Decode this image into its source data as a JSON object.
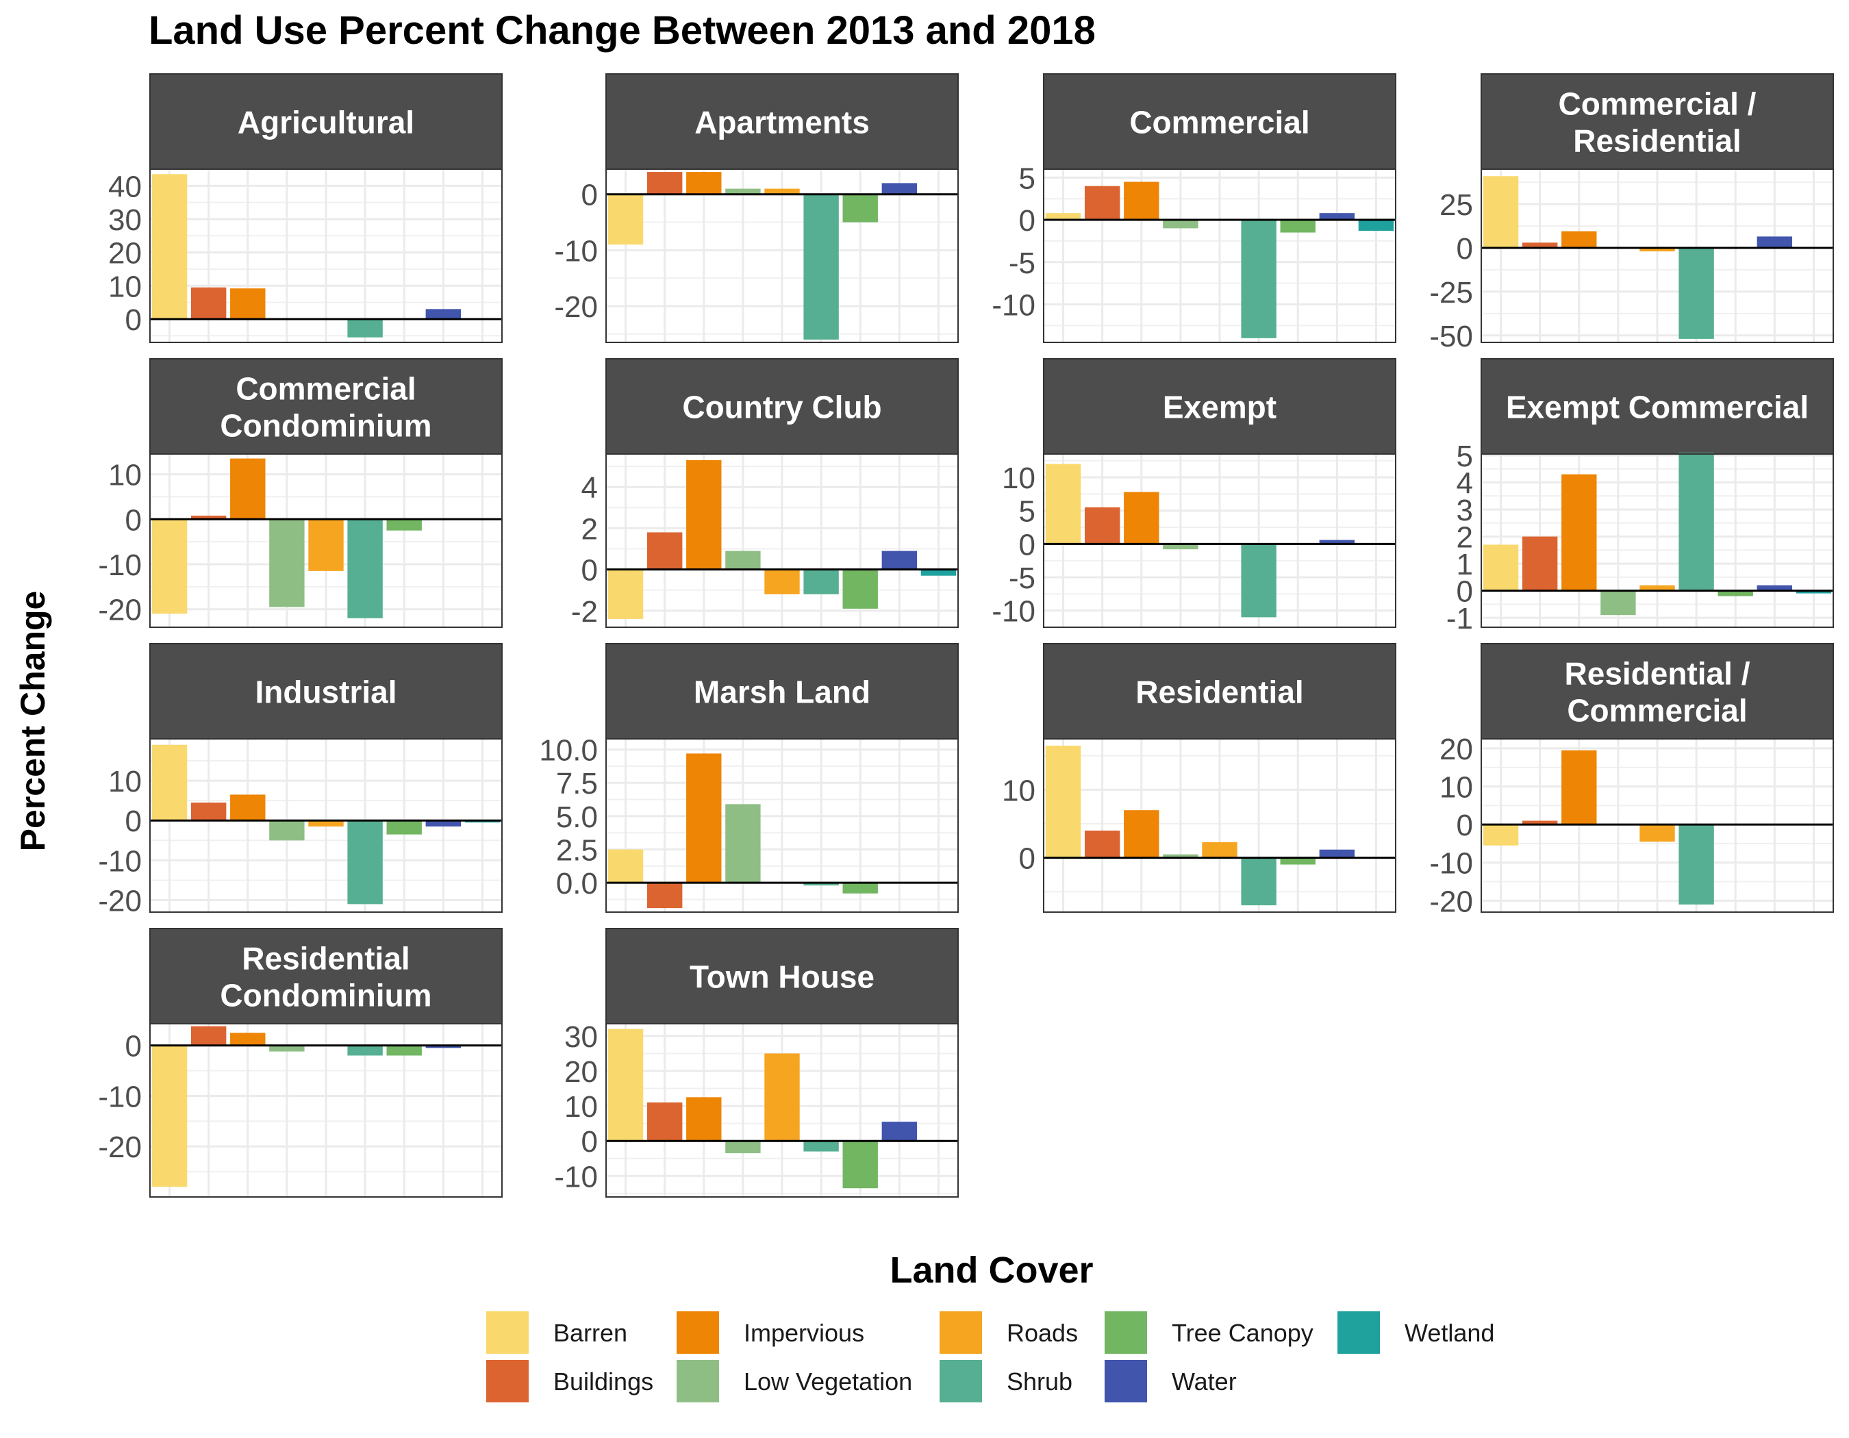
{
  "chart_data": {
    "type": "bar",
    "title": "Land Use Percent Change Between 2013 and 2018",
    "ylabel": "Percent Change",
    "legend": {
      "title": "Land Cover",
      "placement": "bottom",
      "entries": [
        {
          "name": "Barren",
          "color": "#F9D96E"
        },
        {
          "name": "Buildings",
          "color": "#DC6430"
        },
        {
          "name": "Impervious",
          "color": "#EE8505"
        },
        {
          "name": "Low Vegetation",
          "color": "#8FBE85"
        },
        {
          "name": "Roads",
          "color": "#F6A520"
        },
        {
          "name": "Shrub",
          "color": "#56AF92"
        },
        {
          "name": "Tree Canopy",
          "color": "#72B662"
        },
        {
          "name": "Water",
          "color": "#4155AC"
        },
        {
          "name": "Wetland",
          "color": "#1FA19E"
        }
      ]
    },
    "grid": true,
    "categories": [
      "Barren",
      "Buildings",
      "Impervious",
      "Low Vegetation",
      "Roads",
      "Shrub",
      "Tree Canopy",
      "Water",
      "Wetland"
    ],
    "panels": [
      {
        "label": [
          "Agricultural"
        ],
        "ylim": [
          -7,
          45
        ],
        "ticks": [
          0,
          10,
          20,
          30,
          40
        ],
        "tick_labels": [
          "0",
          "10",
          "20",
          "30",
          "40"
        ],
        "values": [
          43.5,
          9.5,
          9.2,
          -0.3,
          0,
          -5.5,
          0,
          3,
          0
        ]
      },
      {
        "label": [
          "Apartments"
        ],
        "ylim": [
          -26.5,
          4.5
        ],
        "ticks": [
          -20,
          -10,
          0
        ],
        "tick_labels": [
          "-20",
          "-10",
          "0"
        ],
        "values": [
          -9,
          4,
          4,
          1,
          1,
          -26,
          -5,
          2,
          0
        ]
      },
      {
        "label": [
          "Commercial"
        ],
        "ylim": [
          -14.5,
          6
        ],
        "ticks": [
          -10,
          -5,
          0,
          5
        ],
        "tick_labels": [
          "-10",
          "-5",
          "0",
          "5"
        ],
        "values": [
          0.8,
          4,
          4.5,
          -1,
          0,
          -14,
          -1.5,
          0.8,
          -1.3
        ]
      },
      {
        "label": [
          "Commercial /",
          "Residential"
        ],
        "ylim": [
          -54,
          45
        ],
        "ticks": [
          -50,
          -25,
          0,
          25
        ],
        "tick_labels": [
          "-50",
          "-25",
          "0",
          "25"
        ],
        "values": [
          41,
          3,
          9.5,
          0,
          -2,
          -52,
          0,
          6.5,
          -0.5
        ]
      },
      {
        "label": [
          "Commercial",
          "Condominium"
        ],
        "ylim": [
          -24,
          14.5
        ],
        "ticks": [
          -20,
          -10,
          0,
          10
        ],
        "tick_labels": [
          "-20",
          "-10",
          "0",
          "10"
        ],
        "values": [
          -21,
          0.8,
          13.5,
          -19.5,
          -11.5,
          -22,
          -2.5,
          0,
          0
        ]
      },
      {
        "label": [
          "Country Club"
        ],
        "ylim": [
          -2.8,
          5.6
        ],
        "ticks": [
          -2,
          0,
          2,
          4
        ],
        "tick_labels": [
          "-2",
          "0",
          "2",
          "4"
        ],
        "values": [
          -2.4,
          1.8,
          5.3,
          0.9,
          -1.2,
          -1.2,
          -1.9,
          0.9,
          -0.3
        ]
      },
      {
        "label": [
          "Exempt"
        ],
        "ylim": [
          -12.5,
          13.5
        ],
        "ticks": [
          -10,
          -5,
          0,
          5,
          10
        ],
        "tick_labels": [
          "-10",
          "-5",
          "0",
          "5",
          "10"
        ],
        "values": [
          12,
          5.5,
          7.8,
          -0.8,
          0,
          -11,
          0,
          0.6,
          0
        ]
      },
      {
        "label": [
          "Exempt Commercial"
        ],
        "ylim": [
          -1.35,
          5.05
        ],
        "ticks": [
          -1,
          0,
          1,
          2,
          3,
          4,
          5
        ],
        "tick_labels": [
          "-1",
          "0",
          "1",
          "2",
          "3",
          "4",
          "5"
        ],
        "values": [
          1.7,
          2,
          4.3,
          -0.9,
          0.2,
          5.1,
          -0.2,
          0.2,
          -0.1
        ]
      },
      {
        "label": [
          "Industrial"
        ],
        "ylim": [
          -23,
          20.5
        ],
        "ticks": [
          -20,
          -10,
          0,
          10
        ],
        "tick_labels": [
          "-20",
          "-10",
          "0",
          "10"
        ],
        "values": [
          19,
          4.5,
          6.5,
          -5,
          -1.5,
          -21,
          -3.5,
          -1.5,
          -0.5
        ]
      },
      {
        "label": [
          "Marsh Land"
        ],
        "ylim": [
          -2.2,
          10.8
        ],
        "ticks": [
          0,
          2.5,
          5,
          7.5,
          10
        ],
        "tick_labels": [
          "0.0",
          "2.5",
          "5.0",
          "7.5",
          "10.0"
        ],
        "values": [
          2.5,
          -1.9,
          9.7,
          5.9,
          0,
          -0.2,
          -0.8,
          0,
          0
        ]
      },
      {
        "label": [
          "Residential"
        ],
        "ylim": [
          -8,
          17.5
        ],
        "ticks": [
          0,
          10
        ],
        "tick_labels": [
          "0",
          "10"
        ],
        "values": [
          16.5,
          4,
          7,
          0.5,
          2.3,
          -7,
          -1,
          1.2,
          0
        ]
      },
      {
        "label": [
          "Residential /",
          "Commercial"
        ],
        "ylim": [
          -23,
          22.5
        ],
        "ticks": [
          -20,
          -10,
          0,
          10,
          20
        ],
        "tick_labels": [
          "-20",
          "-10",
          "0",
          "10",
          "20"
        ],
        "values": [
          -5.5,
          1,
          19.5,
          0,
          -4.5,
          -21,
          0,
          0,
          0
        ]
      },
      {
        "label": [
          "Residential",
          "Condominium"
        ],
        "ylim": [
          -30,
          4.3
        ],
        "ticks": [
          -20,
          -10,
          0
        ],
        "tick_labels": [
          "-20",
          "-10",
          "0"
        ],
        "values": [
          -28,
          3.8,
          2.5,
          -1.2,
          0,
          -2,
          -2,
          -0.5,
          0
        ]
      },
      {
        "label": [
          "Town House"
        ],
        "ylim": [
          -16,
          33.5
        ],
        "ticks": [
          -10,
          0,
          10,
          20,
          30
        ],
        "tick_labels": [
          "-10",
          "0",
          "10",
          "20",
          "30"
        ],
        "values": [
          32,
          11,
          12.5,
          -3.5,
          25,
          -3,
          -13.5,
          5.5,
          0
        ]
      }
    ]
  }
}
